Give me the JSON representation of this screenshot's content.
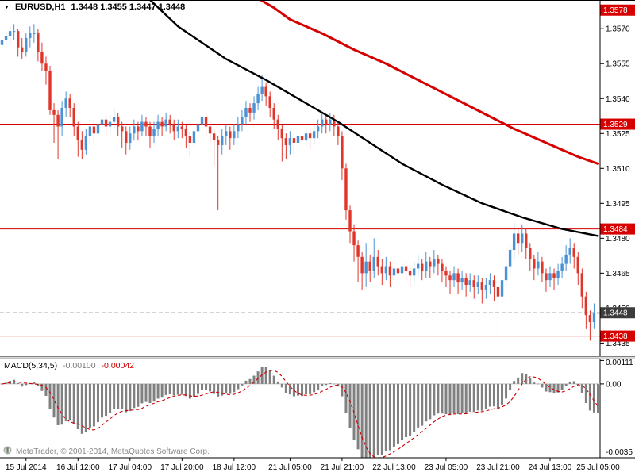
{
  "header": {
    "marker": "▼",
    "instrument": "EURUSD,H1",
    "ohlc": "1.3448 1.3455 1.3447 1.3448"
  },
  "watermark": {
    "text": "MetaTrader, © 2001-2014, MetaQuotes Software Corp."
  },
  "colors": {
    "bull": "#4a92d4",
    "bear": "#e0352b",
    "ma_fast_black": "#000000",
    "ma_slow_red": "#d60000",
    "level_line": "#d60000",
    "level_label_bg": "#d60000",
    "bid_label_bg": "#3c3c3c",
    "histogram": "#808080",
    "signal": "#cc0000",
    "axis_text": "#000000",
    "zero_line": "#c4c4c4",
    "watermark_text": "#8a8a8a"
  },
  "chart_data": {
    "type": "candlestick+macd",
    "title": "EURUSD,H1",
    "symbol": "EURUSD",
    "timeframe": "H1",
    "current_bar": {
      "open": "1.3448",
      "high": "1.3455",
      "low": "1.3447",
      "close": "1.3448"
    },
    "price_scale": 10000,
    "y_range": [
      1.3429,
      1.3582
    ],
    "price_ticks": [
      "1.3570",
      "1.3555",
      "1.3540",
      "1.3525",
      "1.3510",
      "1.3495",
      "1.3480",
      "1.3465",
      "1.3450",
      "1.3435"
    ],
    "levels": [
      {
        "price": 1.3578,
        "label": "1.3578",
        "bg": "red",
        "line": false
      },
      {
        "price": 1.3529,
        "label": "1.3529",
        "bg": "red",
        "line": true
      },
      {
        "price": 1.3484,
        "label": "1.3484",
        "bg": "red",
        "line": true
      },
      {
        "price": 1.3448,
        "label": "1.3448",
        "bg": "bid",
        "line": "dashed"
      },
      {
        "price": 1.3438,
        "label": "1.3438",
        "bg": "red",
        "line": true
      }
    ],
    "candles": [
      [
        13563,
        13570,
        13560,
        13565
      ],
      [
        13565,
        13569,
        13561,
        13567
      ],
      [
        13567,
        13571,
        13563,
        13569
      ],
      [
        13569,
        13572,
        13565,
        13569
      ],
      [
        13569,
        13570,
        13558,
        13562
      ],
      [
        13562,
        13566,
        13557,
        13560
      ],
      [
        13560,
        13568,
        13558,
        13566
      ],
      [
        13566,
        13571,
        13562,
        13568
      ],
      [
        13568,
        13572,
        13564,
        13568
      ],
      [
        13568,
        13570,
        13556,
        13560
      ],
      [
        13560,
        13564,
        13552,
        13555
      ],
      [
        13555,
        13558,
        13546,
        13552
      ],
      [
        13552,
        13554,
        13533,
        13535
      ],
      [
        13535,
        13538,
        13521,
        13533
      ],
      [
        13533,
        13535,
        13514,
        13528
      ],
      [
        13528,
        13539,
        13524,
        13536
      ],
      [
        13536,
        13543,
        13532,
        13540
      ],
      [
        13540,
        13542,
        13532,
        13536
      ],
      [
        13536,
        13538,
        13524,
        13528
      ],
      [
        13528,
        13530,
        13515,
        13522
      ],
      [
        13522,
        13526,
        13514,
        13518
      ],
      [
        13518,
        13527,
        13516,
        13524
      ],
      [
        13524,
        13531,
        13520,
        13528
      ],
      [
        13528,
        13531,
        13521,
        13525
      ],
      [
        13525,
        13532,
        13522,
        13529
      ],
      [
        13529,
        13534,
        13525,
        13531
      ],
      [
        13531,
        13533,
        13524,
        13528
      ],
      [
        13528,
        13533,
        13525,
        13530
      ],
      [
        13530,
        13536,
        13527,
        13532
      ],
      [
        13532,
        13534,
        13524,
        13528
      ],
      [
        13528,
        13530,
        13519,
        13526
      ],
      [
        13526,
        13528,
        13516,
        13521
      ],
      [
        13521,
        13528,
        13518,
        13525
      ],
      [
        13525,
        13531,
        13522,
        13528
      ],
      [
        13528,
        13530,
        13522,
        13526
      ],
      [
        13526,
        13533,
        13524,
        13530
      ],
      [
        13530,
        13532,
        13524,
        13528
      ],
      [
        13528,
        13530,
        13519,
        13524
      ],
      [
        13524,
        13530,
        13521,
        13527
      ],
      [
        13527,
        13533,
        13524,
        13530
      ],
      [
        13530,
        13532,
        13524,
        13528
      ],
      [
        13528,
        13534,
        13526,
        13531
      ],
      [
        13531,
        13533,
        13525,
        13529
      ],
      [
        13529,
        13531,
        13522,
        13526
      ],
      [
        13526,
        13531,
        13523,
        13528
      ],
      [
        13528,
        13530,
        13523,
        13527
      ],
      [
        13527,
        13529,
        13519,
        13524
      ],
      [
        13524,
        13526,
        13515,
        13521
      ],
      [
        13521,
        13529,
        13519,
        13526
      ],
      [
        13526,
        13532,
        13523,
        13529
      ],
      [
        13529,
        13538,
        13526,
        13532
      ],
      [
        13532,
        13534,
        13524,
        13528
      ],
      [
        13528,
        13530,
        13521,
        13525
      ],
      [
        13525,
        13527,
        13511,
        13522
      ],
      [
        13522,
        13524,
        13492,
        13520
      ],
      [
        13520,
        13527,
        13516,
        13524
      ],
      [
        13524,
        13529,
        13520,
        13526
      ],
      [
        13526,
        13528,
        13518,
        13523
      ],
      [
        13523,
        13529,
        13520,
        13526
      ],
      [
        13526,
        13532,
        13523,
        13529
      ],
      [
        13529,
        13535,
        13526,
        13532
      ],
      [
        13532,
        13539,
        13529,
        13536
      ],
      [
        13536,
        13538,
        13530,
        13534
      ],
      [
        13534,
        13541,
        13531,
        13538
      ],
      [
        13538,
        13545,
        13535,
        13542
      ],
      [
        13542,
        13550,
        13539,
        13545
      ],
      [
        13545,
        13547,
        13537,
        13541
      ],
      [
        13541,
        13543,
        13532,
        13536
      ],
      [
        13536,
        13538,
        13527,
        13531
      ],
      [
        13531,
        13533,
        13522,
        13527
      ],
      [
        13527,
        13529,
        13513,
        13523
      ],
      [
        13523,
        13525,
        13514,
        13520
      ],
      [
        13520,
        13526,
        13516,
        13523
      ],
      [
        13523,
        13525,
        13516,
        13521
      ],
      [
        13521,
        13527,
        13518,
        13524
      ],
      [
        13524,
        13526,
        13517,
        13522
      ],
      [
        13522,
        13528,
        13519,
        13525
      ],
      [
        13525,
        13527,
        13518,
        13523
      ],
      [
        13523,
        13529,
        13520,
        13526
      ],
      [
        13526,
        13531,
        13523,
        13528
      ],
      [
        13528,
        13534,
        13525,
        13531
      ],
      [
        13531,
        13533,
        13525,
        13529
      ],
      [
        13529,
        13534,
        13526,
        13531
      ],
      [
        13531,
        13533,
        13524,
        13528
      ],
      [
        13528,
        13530,
        13520,
        13524
      ],
      [
        13524,
        13526,
        13505,
        13510
      ],
      [
        13510,
        13512,
        13488,
        13492
      ],
      [
        13492,
        13494,
        13478,
        13483
      ],
      [
        13483,
        13486,
        13470,
        13477
      ],
      [
        13477,
        13479,
        13461,
        13472
      ],
      [
        13472,
        13474,
        13458,
        13465
      ],
      [
        13465,
        13478,
        13459,
        13470
      ],
      [
        13470,
        13473,
        13461,
        13466
      ],
      [
        13466,
        13480,
        13463,
        13472
      ],
      [
        13472,
        13475,
        13464,
        13468
      ],
      [
        13468,
        13471,
        13460,
        13465
      ],
      [
        13465,
        13472,
        13462,
        13468
      ],
      [
        13468,
        13470,
        13459,
        13464
      ],
      [
        13464,
        13471,
        13461,
        13467
      ],
      [
        13467,
        13469,
        13460,
        13465
      ],
      [
        13465,
        13472,
        13462,
        13468
      ],
      [
        13468,
        13470,
        13461,
        13466
      ],
      [
        13466,
        13468,
        13459,
        13464
      ],
      [
        13464,
        13470,
        13461,
        13467
      ],
      [
        13467,
        13473,
        13464,
        13469
      ],
      [
        13469,
        13471,
        13462,
        13466
      ],
      [
        13466,
        13474,
        13463,
        13470
      ],
      [
        13470,
        13472,
        13463,
        13468
      ],
      [
        13468,
        13475,
        13465,
        13471
      ],
      [
        13471,
        13473,
        13464,
        13469
      ],
      [
        13469,
        13471,
        13461,
        13466
      ],
      [
        13466,
        13468,
        13459,
        13464
      ],
      [
        13464,
        13466,
        13456,
        13462
      ],
      [
        13462,
        13468,
        13459,
        13465
      ],
      [
        13465,
        13467,
        13456,
        13461
      ],
      [
        13461,
        13466,
        13458,
        13463
      ],
      [
        13463,
        13465,
        13455,
        13460
      ],
      [
        13460,
        13465,
        13457,
        13462
      ],
      [
        13462,
        13464,
        13454,
        13459
      ],
      [
        13459,
        13464,
        13456,
        13461
      ],
      [
        13461,
        13463,
        13452,
        13458
      ],
      [
        13458,
        13463,
        13454,
        13460
      ],
      [
        13460,
        13465,
        13456,
        13462
      ],
      [
        13462,
        13464,
        13453,
        13459
      ],
      [
        13459,
        13461,
        13438,
        13455
      ],
      [
        13455,
        13464,
        13451,
        13462
      ],
      [
        13462,
        13470,
        13458,
        13468
      ],
      [
        13468,
        13477,
        13464,
        13475
      ],
      [
        13475,
        13487,
        13471,
        13482
      ],
      [
        13482,
        13484,
        13473,
        13478
      ],
      [
        13478,
        13486,
        13474,
        13482
      ],
      [
        13482,
        13484,
        13471,
        13476
      ],
      [
        13476,
        13478,
        13466,
        13471
      ],
      [
        13471,
        13473,
        13462,
        13467
      ],
      [
        13467,
        13474,
        13464,
        13470
      ],
      [
        13470,
        13472,
        13461,
        13465
      ],
      [
        13465,
        13467,
        13457,
        13462
      ],
      [
        13462,
        13468,
        13459,
        13465
      ],
      [
        13465,
        13467,
        13458,
        13463
      ],
      [
        13463,
        13469,
        13460,
        13466
      ],
      [
        13466,
        13472,
        13463,
        13469
      ],
      [
        13469,
        13477,
        13466,
        13473
      ],
      [
        13473,
        13480,
        13469,
        13476
      ],
      [
        13476,
        13478,
        13467,
        13472
      ],
      [
        13472,
        13474,
        13460,
        13465
      ],
      [
        13465,
        13467,
        13450,
        13455
      ],
      [
        13455,
        13457,
        13441,
        13447
      ],
      [
        13447,
        13449,
        13436,
        13444
      ],
      [
        13444,
        13452,
        13441,
        13448
      ],
      [
        13448,
        13455,
        13447,
        13448
      ]
    ],
    "ma_black": [
      [
        36,
        13584
      ],
      [
        44,
        13571
      ],
      [
        56,
        13557
      ],
      [
        66,
        13548
      ],
      [
        76,
        13538
      ],
      [
        84,
        13530
      ],
      [
        92,
        13521
      ],
      [
        100,
        13512
      ],
      [
        110,
        13503
      ],
      [
        120,
        13495
      ],
      [
        130,
        13489
      ],
      [
        140,
        13484
      ],
      [
        149,
        13481
      ]
    ],
    "ma_red": [
      [
        63,
        13584
      ],
      [
        68,
        13579
      ],
      [
        72,
        13574
      ],
      [
        80,
        13568
      ],
      [
        88,
        13561
      ],
      [
        96,
        13555
      ],
      [
        104,
        13548
      ],
      [
        112,
        13541
      ],
      [
        120,
        13534
      ],
      [
        128,
        13527
      ],
      [
        136,
        13521
      ],
      [
        144,
        13515
      ],
      [
        149,
        13512
      ]
    ],
    "time_labels": [
      {
        "i": 6,
        "t": "15 Jul 2014"
      },
      {
        "i": 19,
        "t": "16 Jul 12:00"
      },
      {
        "i": 32,
        "t": "17 Jul 04:00"
      },
      {
        "i": 45,
        "t": "17 Jul 20:00"
      },
      {
        "i": 58,
        "t": "18 Jul 12:00"
      },
      {
        "i": 72,
        "t": "21 Jul 05:00"
      },
      {
        "i": 85,
        "t": "21 Jul 21:00"
      },
      {
        "i": 98,
        "t": "22 Jul 13:00"
      },
      {
        "i": 111,
        "t": "23 Jul 05:00"
      },
      {
        "i": 124,
        "t": "23 Jul 21:00"
      },
      {
        "i": 137,
        "t": "24 Jul 13:00"
      },
      {
        "i": 149,
        "t": "25 Jul 05:00"
      }
    ],
    "macd": {
      "title": "MACD(5,34,5)",
      "value": "-0.00100",
      "signal_value": "-0.00042",
      "fast": 5,
      "slow": 34,
      "signal_period": 5,
      "range_min": -0.0035,
      "range_max": 0.0012,
      "ticks": [
        {
          "v": 0.00111,
          "t": "0.00111"
        },
        {
          "v": 0,
          "t": "0.00"
        },
        {
          "v": -0.0035,
          "t": "-0.0035"
        }
      ]
    }
  }
}
